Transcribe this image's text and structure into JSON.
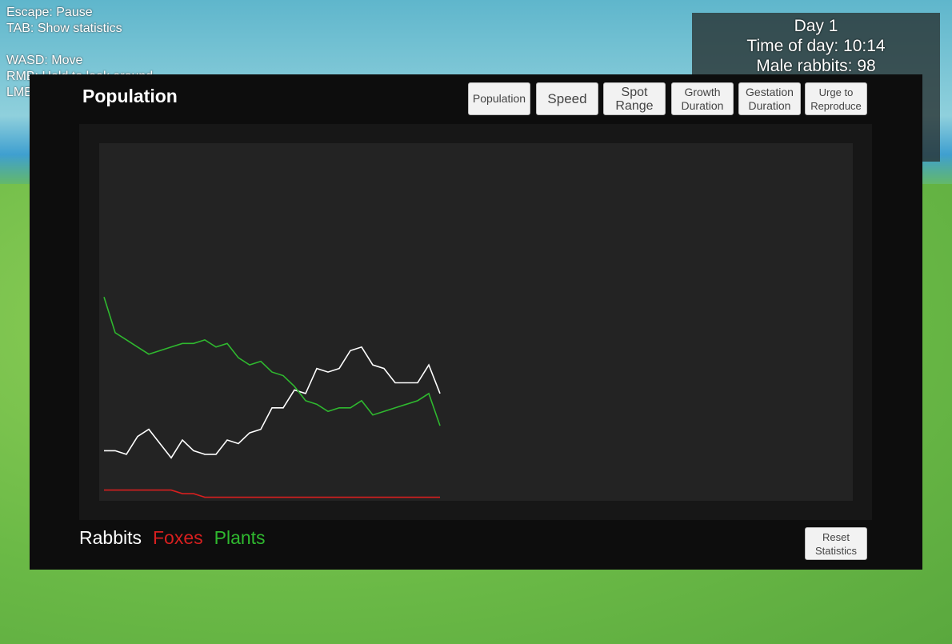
{
  "hud": {
    "controls": [
      "Escape: Pause",
      "TAB: Show statistics",
      "WASD: Move",
      "RMB: Hold to look around",
      "LMB"
    ],
    "info": [
      "Day 1",
      "Time of day: 10:14",
      "Male rabbits: 98"
    ]
  },
  "tabs": [
    "Population",
    "Speed",
    "Spot Range",
    "Growth Duration",
    "Gestation Duration",
    "Urge to Reproduce"
  ],
  "reset_button": "Reset Statistics",
  "chart_data": {
    "type": "line",
    "title": "Population",
    "ylim": [
      0,
      100
    ],
    "series": [
      {
        "name": "Rabbits",
        "color": "#ffffff",
        "values": [
          14,
          14,
          13,
          18,
          20,
          16,
          12,
          17,
          14,
          13,
          13,
          17,
          16,
          19,
          20,
          26,
          26,
          31,
          30,
          37,
          36,
          37,
          42,
          43,
          38,
          37,
          33,
          33,
          33,
          38,
          30
        ]
      },
      {
        "name": "Foxes",
        "color": "#d71f1f",
        "values": [
          3,
          3,
          3,
          3,
          3,
          3,
          3,
          2,
          2,
          1,
          1,
          1,
          1,
          1,
          1,
          1,
          1,
          1,
          1,
          1,
          1,
          1,
          1,
          1,
          1,
          1,
          1,
          1,
          1,
          1,
          1
        ]
      },
      {
        "name": "Plants",
        "color": "#2fb82f",
        "values": [
          57,
          47,
          45,
          43,
          41,
          42,
          43,
          44,
          44,
          45,
          43,
          44,
          40,
          38,
          39,
          36,
          35,
          32,
          28,
          27,
          25,
          26,
          26,
          28,
          24,
          25,
          26,
          27,
          28,
          30,
          21
        ]
      }
    ]
  }
}
